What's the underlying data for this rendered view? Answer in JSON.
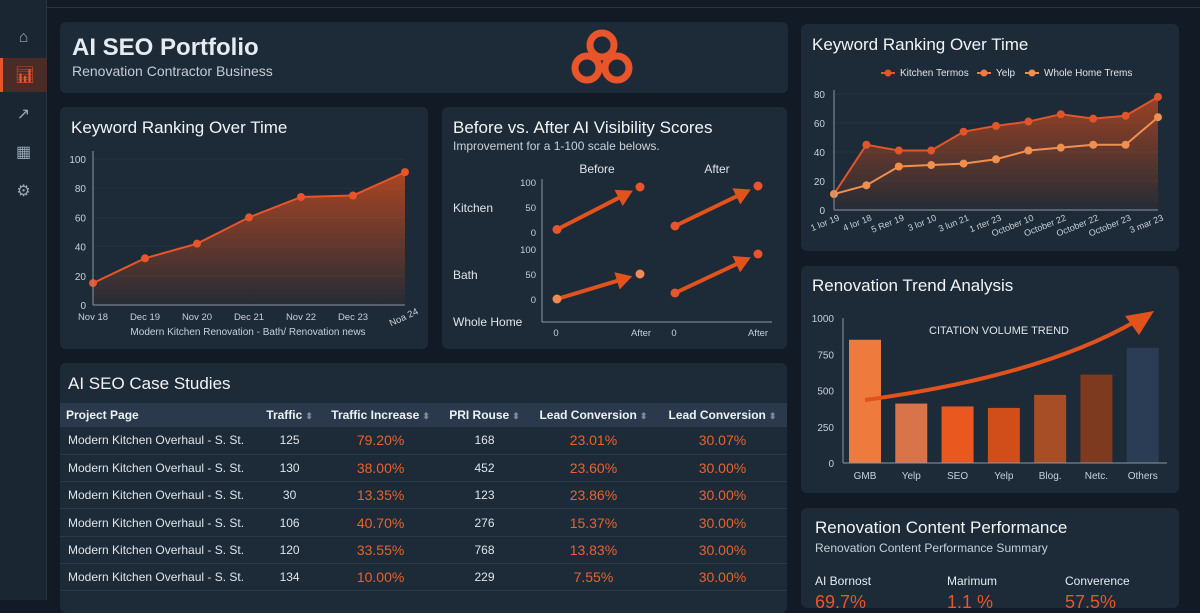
{
  "sidebar": {
    "items": [
      {
        "icon": "home-icon",
        "active": false
      },
      {
        "icon": "bar-chart-icon",
        "active": true
      },
      {
        "icon": "trend-icon",
        "active": false
      },
      {
        "icon": "calendar-icon",
        "active": false
      },
      {
        "icon": "gear-icon",
        "active": false
      }
    ]
  },
  "header": {
    "title": "AI SEO Portfolio",
    "subtitle": "Renovation Contractor Business",
    "logo": "orange-knot-logo"
  },
  "colors": {
    "accent": "#e8552a",
    "card": "#1d2a37",
    "background": "#121b25"
  },
  "chart_data": [
    {
      "id": "kw_left",
      "type": "area",
      "title": "Keyword Ranking Over Time",
      "xlabel": "Modern Kitchen Renovation - Bath/ Renovation news",
      "categories": [
        "Nov 18",
        "Dec 19",
        "Nov 20",
        "Dec 21",
        "Nov 22",
        "Dec 23",
        "Noa 24"
      ],
      "values": [
        15,
        32,
        42,
        60,
        74,
        75,
        91
      ],
      "ylim": [
        0,
        100
      ],
      "yticks": [
        0,
        20,
        40,
        60,
        80,
        100
      ],
      "grid": true
    },
    {
      "id": "ba",
      "type": "scatter",
      "title": "Before vs. After AI Visibility Scores",
      "subtitle": "Improvement for a 1-100 scale belows.",
      "columns": [
        "Before",
        "After"
      ],
      "rows": [
        "Kitchen",
        "Bath",
        "Whole Home"
      ],
      "yticks": [
        0,
        50,
        100
      ],
      "xticks": [
        "0",
        "After"
      ],
      "panels": [
        {
          "row": "Kitchen",
          "col": "Before",
          "from": 5,
          "to": 90
        },
        {
          "row": "Kitchen",
          "col": "After",
          "from": 12,
          "to": 92
        },
        {
          "row": "Bath",
          "col": "Before",
          "from": 0,
          "to": 50
        },
        {
          "row": "Bath",
          "col": "After",
          "from": 12,
          "to": 90
        }
      ]
    },
    {
      "id": "kw_right",
      "type": "line",
      "title": "Keyword Ranking Over Time",
      "legend": [
        "Kitchen Termos",
        "Yelp",
        "Whole Home Trems"
      ],
      "legend_placement": "top",
      "categories": [
        "1 lor 19",
        "4 lor 18",
        "5 Rer 19",
        "3 lor 10",
        "3 lun 21",
        "1 rter 23",
        "October 10",
        "October 22",
        "October 22",
        "October 23",
        "3 mar 23"
      ],
      "series": [
        {
          "name": "Kitchen Termos",
          "values": [
            11,
            45,
            41,
            41,
            54,
            58,
            61,
            66,
            63,
            65,
            78
          ]
        },
        {
          "name": "Whole Home Trems",
          "values": [
            11,
            17,
            30,
            31,
            32,
            35,
            41,
            43,
            45,
            45,
            64
          ]
        }
      ],
      "ylim": [
        0,
        80
      ],
      "yticks": [
        0,
        20,
        40,
        60,
        80
      ],
      "grid": true
    },
    {
      "id": "trend",
      "type": "bar",
      "title": "Renovation Trend Analysis",
      "annotation": "CITATION VOLUME TREND",
      "categories": [
        "GMB",
        "Yelp",
        "SEO",
        "Yelp",
        "Blog.",
        "Netc.",
        "Others"
      ],
      "values": [
        850,
        410,
        390,
        380,
        470,
        610,
        795
      ],
      "colors": [
        "#ef7a3e",
        "#d9734a",
        "#e9581f",
        "#d14e1a",
        "#a84e26",
        "#7d3a1e",
        "#2b3d55"
      ],
      "ylim": [
        0,
        1000
      ],
      "yticks": [
        0,
        250,
        500,
        750,
        1000
      ]
    }
  ],
  "case_studies": {
    "title": "AI SEO Case Studies",
    "columns": [
      "Project Page",
      "Traffic",
      "Traffic Increase",
      "PRI Rouse",
      "Lead Conversion",
      "Lead Conversion"
    ],
    "rows": [
      [
        "Modern Kitchen Overhaul - S. St.",
        "125",
        "79.20%",
        "168",
        "23.01%",
        "30.07%"
      ],
      [
        "Modern Kitchen Overhaul - S. St.",
        "130",
        "38.00%",
        "452",
        "23.60%",
        "30.00%"
      ],
      [
        "Modern Kitchen Overhaul - S. St.",
        "30",
        "13.35%",
        "123",
        "23.86%",
        "30.00%"
      ],
      [
        "Modern Kitchen Overhaul - S. St.",
        "106",
        "40.70%",
        "276",
        "15.37%",
        "30.00%"
      ],
      [
        "Modern Kitchen Overhaul - S. St.",
        "120",
        "33.55%",
        "768",
        "13.83%",
        "30.00%"
      ],
      [
        "Modern Kitchen Overhaul - S. St.",
        "134",
        "10.00%",
        "229",
        "7.55%",
        "30.00%"
      ]
    ]
  },
  "content": {
    "title": "Renovation Content Performance",
    "subtitle": "Renovation Content Performance Summary",
    "kpis": [
      {
        "label": "AI Bornost",
        "value": "69.7%"
      },
      {
        "label": "Marimum",
        "value": "1.1 %"
      },
      {
        "label": "Converence",
        "value": "57.5%"
      }
    ]
  }
}
